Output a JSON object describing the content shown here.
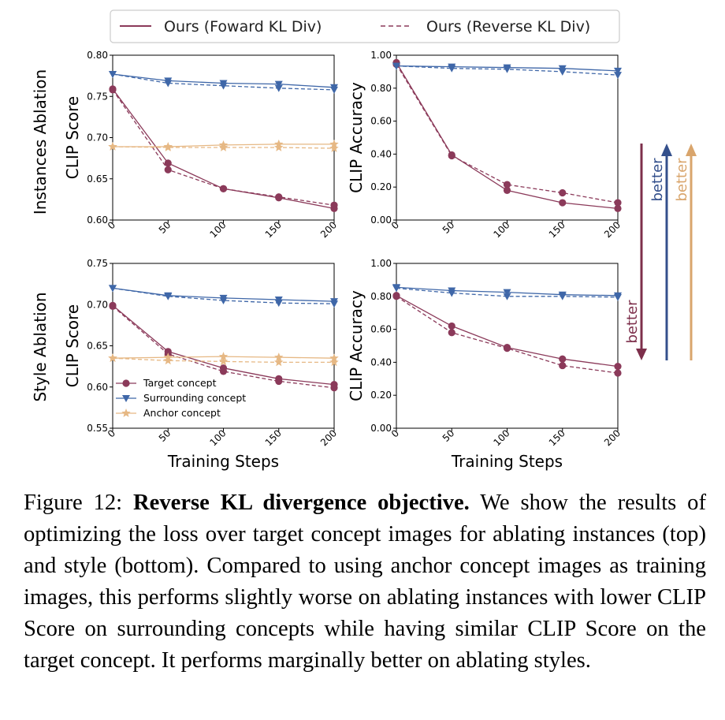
{
  "legend_top": {
    "forward": "Ours (Foward KL Div)",
    "reverse": "Ours (Reverse KL Div)"
  },
  "row_labels": [
    "Instances Ablation",
    "Style Ablation"
  ],
  "better_labels": [
    "better",
    "better",
    "better"
  ],
  "colors": {
    "target": "#8b3a5a",
    "surrounding": "#3f67a8",
    "anchor": "#e6b884",
    "arrow_target": "#7d2f4b",
    "arrow_surrounding": "#34508c",
    "arrow_anchor": "#d9a56c"
  },
  "chart_data": [
    {
      "type": "line",
      "ylabel": "CLIP Score",
      "xlabel": "",
      "x": [
        0,
        50,
        100,
        150,
        200
      ],
      "ylim": [
        0.6,
        0.8
      ],
      "yticks": [
        "0.60",
        "0.65",
        "0.70",
        "0.75",
        "0.80"
      ],
      "series": [
        {
          "name": "Target concept",
          "style": "forward",
          "values": [
            0.759,
            0.669,
            0.638,
            0.627,
            0.614
          ]
        },
        {
          "name": "Target concept",
          "style": "reverse",
          "values": [
            0.758,
            0.661,
            0.638,
            0.628,
            0.618
          ]
        },
        {
          "name": "Surrounding concept",
          "style": "forward",
          "values": [
            0.777,
            0.769,
            0.766,
            0.765,
            0.761
          ]
        },
        {
          "name": "Surrounding concept",
          "style": "reverse",
          "values": [
            0.777,
            0.766,
            0.763,
            0.76,
            0.758
          ]
        },
        {
          "name": "Anchor concept",
          "style": "forward",
          "values": [
            0.689,
            0.689,
            0.691,
            0.692,
            0.692
          ]
        },
        {
          "name": "Anchor concept",
          "style": "reverse",
          "values": [
            0.689,
            0.688,
            0.688,
            0.688,
            0.687
          ]
        }
      ]
    },
    {
      "type": "line",
      "ylabel": "CLIP Accuracy",
      "xlabel": "",
      "x": [
        0,
        50,
        100,
        150,
        200
      ],
      "ylim": [
        0.0,
        1.0
      ],
      "yticks": [
        "0.00",
        "0.20",
        "0.40",
        "0.60",
        "0.80",
        "1.00"
      ],
      "series": [
        {
          "name": "Target concept",
          "style": "forward",
          "values": [
            0.955,
            0.395,
            0.18,
            0.105,
            0.07
          ]
        },
        {
          "name": "Target concept",
          "style": "reverse",
          "values": [
            0.945,
            0.39,
            0.215,
            0.165,
            0.105
          ]
        },
        {
          "name": "Surrounding concept",
          "style": "forward",
          "values": [
            0.935,
            0.93,
            0.925,
            0.92,
            0.905
          ]
        },
        {
          "name": "Surrounding concept",
          "style": "reverse",
          "values": [
            0.935,
            0.92,
            0.915,
            0.9,
            0.88
          ]
        }
      ]
    },
    {
      "type": "line",
      "ylabel": "CLIP Score",
      "xlabel": "Training Steps",
      "x": [
        0,
        50,
        100,
        150,
        200
      ],
      "ylim": [
        0.55,
        0.75
      ],
      "yticks": [
        "0.55",
        "0.60",
        "0.65",
        "0.70",
        "0.75"
      ],
      "legend": {
        "placement": "lower-left",
        "entries": [
          "Target concept",
          "Surrounding concept",
          "Anchor concept"
        ]
      },
      "series": [
        {
          "name": "Target concept",
          "style": "forward",
          "values": [
            0.699,
            0.643,
            0.623,
            0.61,
            0.603
          ]
        },
        {
          "name": "Target concept",
          "style": "reverse",
          "values": [
            0.698,
            0.64,
            0.619,
            0.607,
            0.599
          ]
        },
        {
          "name": "Surrounding concept",
          "style": "forward",
          "values": [
            0.72,
            0.711,
            0.708,
            0.706,
            0.704
          ]
        },
        {
          "name": "Surrounding concept",
          "style": "reverse",
          "values": [
            0.72,
            0.71,
            0.705,
            0.702,
            0.701
          ]
        },
        {
          "name": "Anchor concept",
          "style": "forward",
          "values": [
            0.635,
            0.636,
            0.637,
            0.636,
            0.635
          ]
        },
        {
          "name": "Anchor concept",
          "style": "reverse",
          "values": [
            0.635,
            0.632,
            0.631,
            0.63,
            0.63
          ]
        }
      ]
    },
    {
      "type": "line",
      "ylabel": "CLIP Accuracy",
      "xlabel": "Training Steps",
      "x": [
        0,
        50,
        100,
        150,
        200
      ],
      "ylim": [
        0.0,
        1.0
      ],
      "yticks": [
        "0.00",
        "0.20",
        "0.40",
        "0.60",
        "0.80",
        "1.00"
      ],
      "series": [
        {
          "name": "Target concept",
          "style": "forward",
          "values": [
            0.805,
            0.62,
            0.49,
            0.42,
            0.375
          ]
        },
        {
          "name": "Target concept",
          "style": "reverse",
          "values": [
            0.8,
            0.58,
            0.485,
            0.38,
            0.335
          ]
        },
        {
          "name": "Surrounding concept",
          "style": "forward",
          "values": [
            0.855,
            0.835,
            0.825,
            0.81,
            0.805
          ]
        },
        {
          "name": "Surrounding concept",
          "style": "reverse",
          "values": [
            0.85,
            0.82,
            0.8,
            0.8,
            0.795
          ]
        }
      ]
    }
  ],
  "caption": {
    "label": "Figure 12:",
    "title": "Reverse KL divergence objective.",
    "body": "We show the results of optimizing the loss over target concept images for ablating instances (top) and style (bottom). Compared to using anchor concept images as training images, this performs slightly worse on ablating instances with lower CLIP Score on surrounding concepts while having similar CLIP Score on the target concept. It performs marginally better on ablating styles."
  }
}
